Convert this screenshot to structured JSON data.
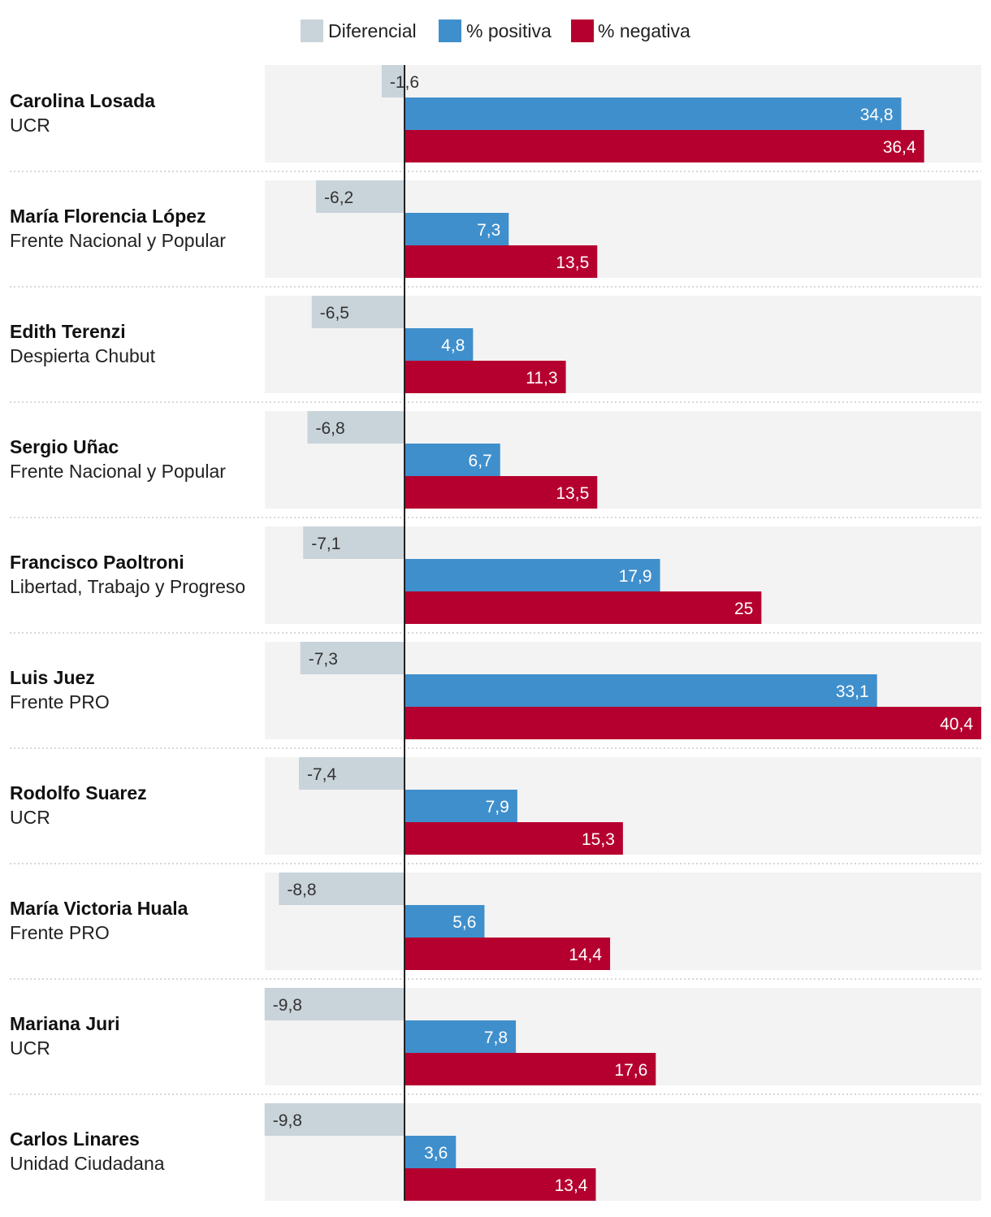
{
  "colors": {
    "diferencial": "#c9d3da",
    "positiva": "#3f8fcc",
    "negativa": "#b5002f",
    "row_bg": "#f3f3f3",
    "separator": "#cccccc",
    "axis": "#222222"
  },
  "chart_data": {
    "type": "bar",
    "orientation": "horizontal",
    "legend": [
      {
        "key": "diferencial",
        "label": "Diferencial"
      },
      {
        "key": "positiva",
        "label": "% positiva"
      },
      {
        "key": "negativa",
        "label": "% negativa"
      }
    ],
    "legend_position": "top-center",
    "xlim": [
      -9.8,
      40.4
    ],
    "series": [
      {
        "name": "Diferencial",
        "key": "diferencial",
        "values": [
          -1.6,
          -6.2,
          -6.5,
          -6.8,
          -7.1,
          -7.3,
          -7.4,
          -8.8,
          -9.8,
          -9.8
        ]
      },
      {
        "name": "% positiva",
        "key": "positiva",
        "values": [
          34.8,
          7.3,
          4.8,
          6.7,
          17.9,
          33.1,
          7.9,
          5.6,
          7.8,
          3.6
        ]
      },
      {
        "name": "% negativa",
        "key": "negativa",
        "values": [
          36.4,
          13.5,
          11.3,
          13.5,
          25,
          40.4,
          15.3,
          14.4,
          17.6,
          13.4
        ]
      }
    ],
    "rows": [
      {
        "name": "Carolina Losada",
        "party": "UCR",
        "diferencial": -1.6,
        "positiva": 34.8,
        "negativa": 36.4,
        "labels": [
          "-1,6",
          "34,8",
          "36,4"
        ]
      },
      {
        "name": "María Florencia López",
        "party": "Frente Nacional y Popular",
        "diferencial": -6.2,
        "positiva": 7.3,
        "negativa": 13.5,
        "labels": [
          "-6,2",
          "7,3",
          "13,5"
        ]
      },
      {
        "name": "Edith Terenzi",
        "party": "Despierta Chubut",
        "diferencial": -6.5,
        "positiva": 4.8,
        "negativa": 11.3,
        "labels": [
          "-6,5",
          "4,8",
          "11,3"
        ]
      },
      {
        "name": "Sergio Uñac",
        "party": "Frente Nacional y Popular",
        "diferencial": -6.8,
        "positiva": 6.7,
        "negativa": 13.5,
        "labels": [
          "-6,8",
          "6,7",
          "13,5"
        ]
      },
      {
        "name": "Francisco Paoltroni",
        "party": "Libertad, Trabajo y Progreso",
        "diferencial": -7.1,
        "positiva": 17.9,
        "negativa": 25,
        "labels": [
          "-7,1",
          "17,9",
          "25"
        ]
      },
      {
        "name": "Luis Juez",
        "party": "Frente PRO",
        "diferencial": -7.3,
        "positiva": 33.1,
        "negativa": 40.4,
        "labels": [
          "-7,3",
          "33,1",
          "40,4"
        ]
      },
      {
        "name": "Rodolfo Suarez",
        "party": "UCR",
        "diferencial": -7.4,
        "positiva": 7.9,
        "negativa": 15.3,
        "labels": [
          "-7,4",
          "7,9",
          "15,3"
        ]
      },
      {
        "name": "María Victoria Huala",
        "party": "Frente PRO",
        "diferencial": -8.8,
        "positiva": 5.6,
        "negativa": 14.4,
        "labels": [
          "-8,8",
          "5,6",
          "14,4"
        ]
      },
      {
        "name": "Mariana Juri",
        "party": "UCR",
        "diferencial": -9.8,
        "positiva": 7.8,
        "negativa": 17.6,
        "labels": [
          "-9,8",
          "7,8",
          "17,6"
        ]
      },
      {
        "name": "Carlos Linares",
        "party": "Unidad Ciudadana",
        "diferencial": -9.8,
        "positiva": 3.6,
        "negativa": 13.4,
        "labels": [
          "-9,8",
          "3,6",
          "13,4"
        ]
      }
    ]
  }
}
